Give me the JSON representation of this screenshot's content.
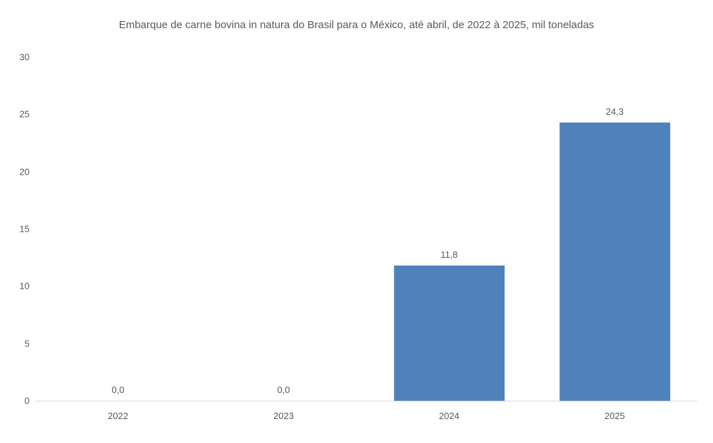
{
  "chart_data": {
    "type": "bar",
    "title": "Embarque de carne bovina in natura do Brasil para o México, até abril, de 2022 à 2025, mil toneladas",
    "categories": [
      "2022",
      "2023",
      "2024",
      "2025"
    ],
    "values": [
      0.0,
      0.0,
      11.8,
      24.3
    ],
    "value_labels": [
      "0,0",
      "0,0",
      "11,8",
      "24,3"
    ],
    "ylabel": "",
    "xlabel": "",
    "ylim": [
      0,
      30
    ],
    "yticks": [
      0,
      5,
      10,
      15,
      20,
      25,
      30
    ],
    "grid": "off",
    "legend": "none",
    "bar_color": "#4f81bd",
    "axis_line_color": "#d9d9d9",
    "text_color": "#595959",
    "background_color": "#ffffff"
  }
}
